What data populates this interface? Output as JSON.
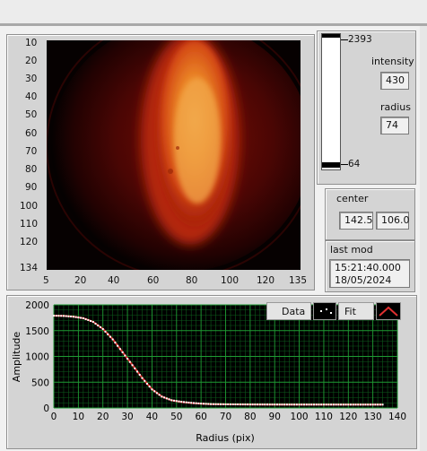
{
  "image_panel": {
    "y_ticks": [
      "10",
      "20",
      "30",
      "40",
      "50",
      "60",
      "70",
      "80",
      "90",
      "100",
      "110",
      "120",
      "134"
    ],
    "x_ticks": [
      "5",
      "20",
      "40",
      "60",
      "80",
      "100",
      "120",
      "135"
    ]
  },
  "colorbar": {
    "max_label": "2393",
    "min_label": "64"
  },
  "intensity": {
    "label": "intensity",
    "value": "430"
  },
  "radius": {
    "label": "radius",
    "value": "74"
  },
  "center": {
    "label": "center",
    "x": "142.5",
    "y": "106.0"
  },
  "last_mod": {
    "label": "last mod",
    "time": "15:21:40.000",
    "date": "18/05/2024"
  },
  "chart_data": {
    "type": "scatter",
    "xlabel": "Radius (pix)",
    "ylabel": "Amplitude",
    "xlim": [
      0,
      140
    ],
    "ylim": [
      0,
      2000
    ],
    "x_ticks": [
      0,
      10,
      20,
      30,
      40,
      50,
      60,
      70,
      80,
      90,
      100,
      110,
      120,
      130,
      140
    ],
    "y_ticks": [
      0,
      500,
      1000,
      1500,
      2000
    ],
    "legend": {
      "position": "top-right",
      "entries": [
        "Data",
        "Fit"
      ]
    },
    "grid": true,
    "series": [
      {
        "name": "Data",
        "style": "points",
        "color": "#ffffff",
        "x": [
          0,
          4,
          8,
          12,
          16,
          20,
          24,
          28,
          32,
          36,
          40,
          44,
          48,
          52,
          56,
          60,
          64,
          68,
          72,
          80,
          90,
          100,
          110,
          120,
          130,
          134
        ],
        "y": [
          1790,
          1785,
          1770,
          1740,
          1670,
          1530,
          1330,
          1080,
          830,
          580,
          360,
          220,
          150,
          120,
          100,
          85,
          75,
          72,
          70,
          68,
          67,
          66,
          66,
          65,
          65,
          65
        ]
      },
      {
        "name": "Fit",
        "style": "line",
        "color": "#e03030",
        "x": [
          0,
          4,
          8,
          12,
          16,
          20,
          24,
          28,
          32,
          36,
          40,
          44,
          48,
          52,
          56,
          60,
          64,
          68,
          72,
          80,
          90,
          100,
          110,
          120,
          130,
          134
        ],
        "y": [
          1790,
          1786,
          1772,
          1742,
          1672,
          1535,
          1335,
          1085,
          835,
          585,
          365,
          222,
          148,
          115,
          96,
          82,
          74,
          71,
          69,
          67,
          66,
          66,
          65,
          65,
          65,
          65
        ]
      }
    ]
  }
}
